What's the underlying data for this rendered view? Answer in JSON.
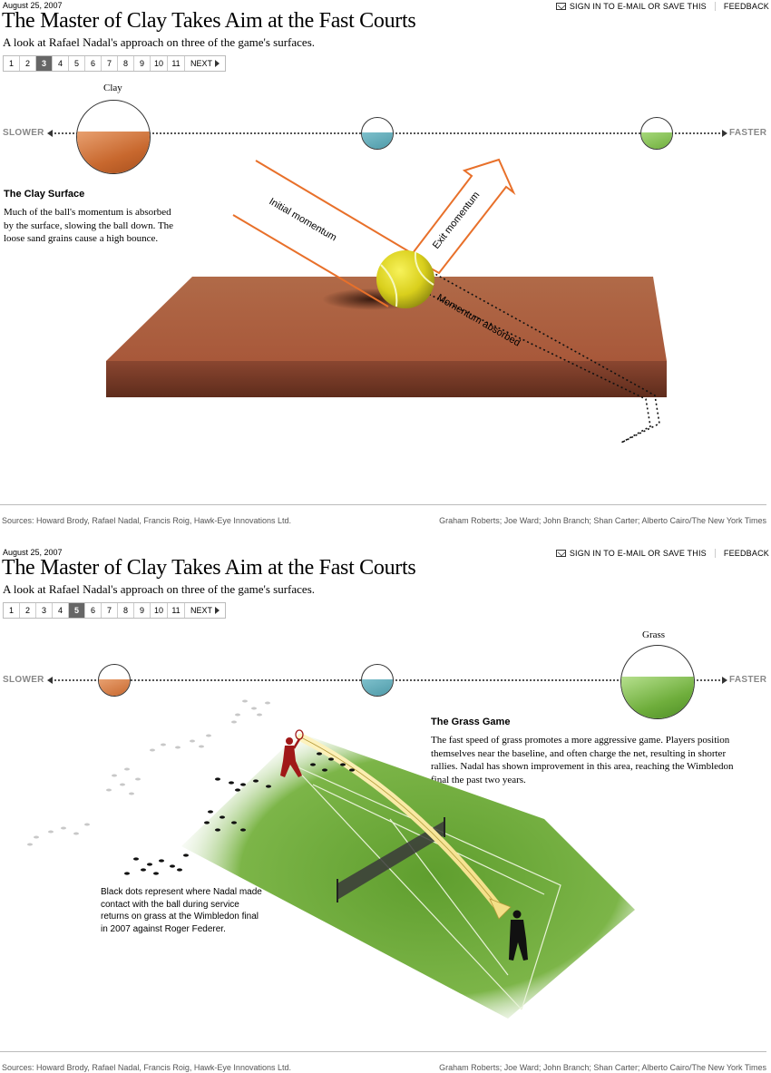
{
  "panel1": {
    "date": "August 25, 2007",
    "signin": "SIGN IN TO E-MAIL OR SAVE THIS",
    "feedback": "FEEDBACK",
    "title": "The Master of Clay Takes Aim at the Fast Courts",
    "subtitle": "A look at Rafael Nadal's approach on three of the game's surfaces.",
    "pages": [
      "1",
      "2",
      "3",
      "4",
      "5",
      "6",
      "7",
      "8",
      "9",
      "10",
      "11"
    ],
    "active_page": "3",
    "next": "NEXT",
    "slower": "SLOWER",
    "faster": "FASTER",
    "clay_label": "Clay",
    "heading": "The Clay Surface",
    "body": "Much of the ball's momentum is absorbed by the surface, slowing the ball down. The loose sand grains cause a high bounce.",
    "label_initial": "Initial momentum",
    "label_exit": "Exit momentum",
    "label_absorbed": "Momentum absorbed",
    "sources": "Sources: Howard Brody, Rafael Nadal, Francis Roig, Hawk-Eye Innovations Ltd.",
    "credits": "Graham Roberts; Joe Ward; John Branch; Shan Carter; Alberto Cairo/The New York Times"
  },
  "panel2": {
    "date": "August 25, 2007",
    "signin": "SIGN IN TO E-MAIL OR SAVE THIS",
    "feedback": "FEEDBACK",
    "title": "The Master of Clay Takes Aim at the Fast Courts",
    "subtitle": "A look at Rafael Nadal's approach on three of the game's surfaces.",
    "pages": [
      "1",
      "2",
      "3",
      "4",
      "5",
      "6",
      "7",
      "8",
      "9",
      "10",
      "11"
    ],
    "active_page": "5",
    "next": "NEXT",
    "slower": "SLOWER",
    "faster": "FASTER",
    "grass_label": "Grass",
    "heading": "The Grass Game",
    "body": "The fast speed of grass promotes a more aggressive game. Players position themselves near the baseline, and often charge the net, resulting in shorter rallies. Nadal has shown improvement in this area, reaching the Wimbledon final the past two years.",
    "dots_note": "Black dots represent where Nadal made contact with the ball during service returns on grass at the Wimbledon final in 2007 against Roger Federer.",
    "sources": "Sources: Howard Brody, Rafael Nadal, Francis Roig, Hawk-Eye Innovations Ltd.",
    "credits": "Graham Roberts; Joe Ward; John Branch; Shan Carter; Alberto Cairo/The New York Times"
  },
  "colors": {
    "clay": "#c8682e",
    "clay_dark": "#7a3b22",
    "hard": "#4e9aa8",
    "grass": "#6fae3c",
    "arrow_orange": "#e8702a",
    "nadal_red": "#a01818"
  }
}
